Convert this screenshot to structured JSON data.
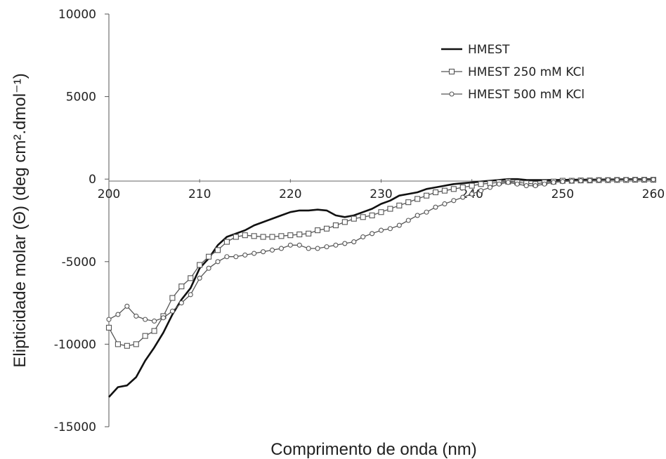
{
  "chart_data": {
    "type": "line",
    "title": "",
    "xlabel": "Comprimento de onda (nm)",
    "ylabel": "Elipticidade molar (Θ) (deg cm².dmol⁻¹)",
    "xlim": [
      200,
      260
    ],
    "ylim": [
      -15000,
      10000
    ],
    "xticks": [
      200,
      210,
      220,
      230,
      240,
      250,
      260
    ],
    "yticks": [
      10000,
      5000,
      0,
      -5000,
      -10000,
      -15000
    ],
    "xtick_labels": [
      "200",
      "210",
      "220",
      "230",
      "240",
      "250",
      "260"
    ],
    "ytick_labels": [
      "10000",
      "5000",
      "0",
      "-5000",
      "-10000",
      "-15000"
    ],
    "grid": false,
    "legend_position": "top-right",
    "series": [
      {
        "name": "HMEST",
        "marker": "none",
        "color": "#111111",
        "x": [
          200,
          201,
          202,
          203,
          204,
          205,
          206,
          207,
          208,
          209,
          210,
          211,
          212,
          213,
          214,
          215,
          216,
          217,
          218,
          219,
          220,
          221,
          222,
          223,
          224,
          225,
          226,
          227,
          228,
          229,
          230,
          231,
          232,
          233,
          234,
          235,
          236,
          237,
          238,
          239,
          240,
          241,
          242,
          243,
          244,
          245,
          246,
          247,
          248,
          249,
          250,
          251,
          252,
          253,
          254,
          255,
          256,
          257,
          258,
          259,
          260
        ],
        "y": [
          -13200,
          -12600,
          -12500,
          -12000,
          -11000,
          -10200,
          -9300,
          -8200,
          -7300,
          -6600,
          -5400,
          -4800,
          -4000,
          -3500,
          -3300,
          -3100,
          -2800,
          -2600,
          -2400,
          -2200,
          -2000,
          -1900,
          -1900,
          -1850,
          -1900,
          -2200,
          -2300,
          -2200,
          -2000,
          -1800,
          -1500,
          -1300,
          -1000,
          -900,
          -800,
          -600,
          -500,
          -400,
          -300,
          -250,
          -200,
          -150,
          -100,
          -50,
          0,
          0,
          -50,
          -60,
          -60,
          -50,
          -50,
          -40,
          -40,
          -30,
          -30,
          -20,
          -20,
          -10,
          -10,
          -10,
          -10
        ]
      },
      {
        "name": "HMEST 250 mM KCl",
        "marker": "square",
        "color": "#555555",
        "x": [
          200,
          201,
          202,
          203,
          204,
          205,
          206,
          207,
          208,
          209,
          210,
          211,
          212,
          213,
          214,
          215,
          216,
          217,
          218,
          219,
          220,
          221,
          222,
          223,
          224,
          225,
          226,
          227,
          228,
          229,
          230,
          231,
          232,
          233,
          234,
          235,
          236,
          237,
          238,
          239,
          240,
          241,
          242,
          243,
          244,
          245,
          246,
          247,
          248,
          249,
          250,
          251,
          252,
          253,
          254,
          255,
          256,
          257,
          258,
          259,
          260
        ],
        "y": [
          -9000,
          -10000,
          -10100,
          -10000,
          -9500,
          -9200,
          -8300,
          -7200,
          -6500,
          -6000,
          -5200,
          -4700,
          -4300,
          -3800,
          -3500,
          -3400,
          -3450,
          -3500,
          -3500,
          -3450,
          -3400,
          -3350,
          -3300,
          -3100,
          -3000,
          -2800,
          -2600,
          -2400,
          -2300,
          -2200,
          -2000,
          -1800,
          -1600,
          -1400,
          -1200,
          -1000,
          -800,
          -700,
          -600,
          -500,
          -400,
          -300,
          -250,
          -200,
          -150,
          -200,
          -250,
          -300,
          -200,
          -150,
          -100,
          -100,
          -80,
          -80,
          -60,
          -60,
          -50,
          -50,
          -40,
          -40,
          -40
        ]
      },
      {
        "name": "HMEST 500 mM KCl",
        "marker": "circle",
        "color": "#555555",
        "x": [
          200,
          201,
          202,
          203,
          204,
          205,
          206,
          207,
          208,
          209,
          210,
          211,
          212,
          213,
          214,
          215,
          216,
          217,
          218,
          219,
          220,
          221,
          222,
          223,
          224,
          225,
          226,
          227,
          228,
          229,
          230,
          231,
          232,
          233,
          234,
          235,
          236,
          237,
          238,
          239,
          240,
          241,
          242,
          243,
          244,
          245,
          246,
          247,
          248,
          249,
          250,
          251,
          252,
          253,
          254,
          255,
          256,
          257,
          258,
          259,
          260
        ],
        "y": [
          -8500,
          -8200,
          -7700,
          -8300,
          -8500,
          -8600,
          -8400,
          -8000,
          -7500,
          -7000,
          -6000,
          -5400,
          -5000,
          -4700,
          -4700,
          -4600,
          -4500,
          -4400,
          -4300,
          -4200,
          -4000,
          -4000,
          -4200,
          -4200,
          -4100,
          -4000,
          -3900,
          -3800,
          -3500,
          -3300,
          -3100,
          -3000,
          -2800,
          -2500,
          -2200,
          -2000,
          -1700,
          -1500,
          -1300,
          -1100,
          -900,
          -700,
          -500,
          -300,
          -200,
          -300,
          -400,
          -400,
          -300,
          -200,
          -150,
          -120,
          -100,
          -80,
          -60,
          -50,
          -40,
          -30,
          -30,
          -30,
          -30
        ]
      }
    ]
  }
}
